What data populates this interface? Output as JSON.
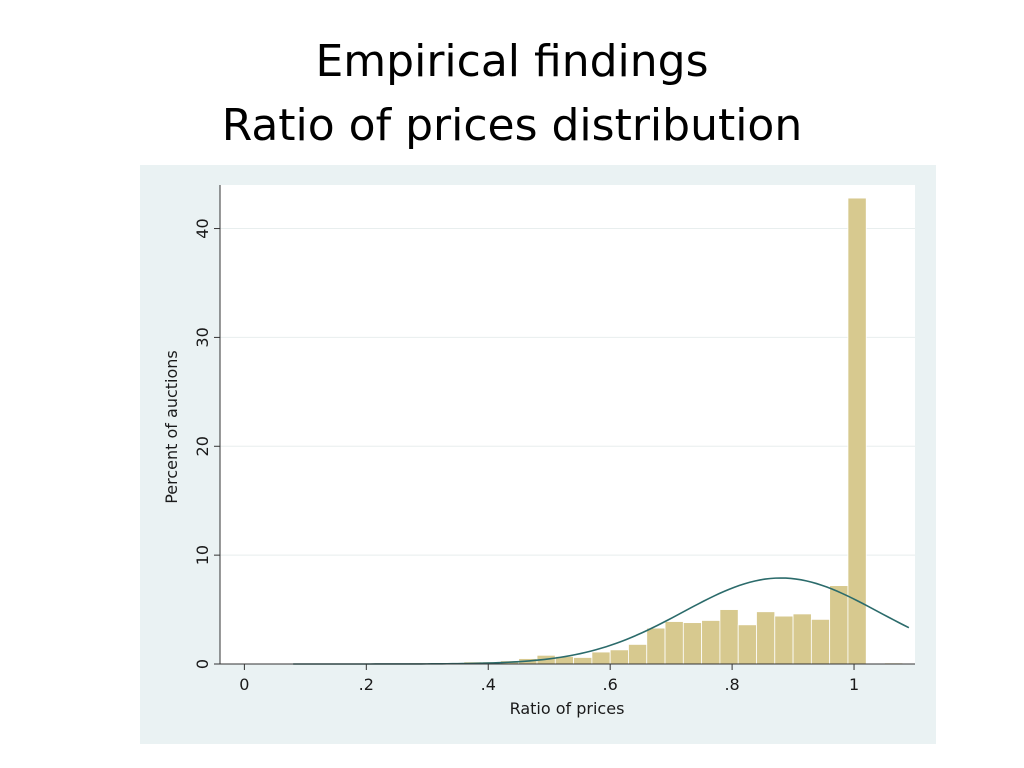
{
  "slide": {
    "title_line1": "Empirical findings",
    "title_line2": "Ratio of prices distribution"
  },
  "colors": {
    "frame_background": "#EAF2F3",
    "plot_background": "#FFFFFF",
    "bar_fill": "#D7C98F",
    "bar_stroke": "#FFFFFF",
    "curve": "#2B6B6B",
    "gridline": "#E8EEEE",
    "axis": "#333333"
  },
  "chart_data": {
    "type": "bar",
    "title": "",
    "xlabel": "Ratio of prices",
    "ylabel": "Percent of auctions",
    "xlim": [
      -0.04,
      1.1
    ],
    "ylim": [
      0,
      44
    ],
    "x_ticks": [
      {
        "value": 0,
        "label": "0"
      },
      {
        "value": 0.2,
        "label": ".2"
      },
      {
        "value": 0.4,
        "label": ".4"
      },
      {
        "value": 0.6,
        "label": ".6"
      },
      {
        "value": 0.8,
        "label": ".8"
      },
      {
        "value": 1,
        "label": "1"
      }
    ],
    "y_ticks": [
      {
        "value": 0,
        "label": "0"
      },
      {
        "value": 10,
        "label": "10"
      },
      {
        "value": 20,
        "label": "20"
      },
      {
        "value": 30,
        "label": "30"
      },
      {
        "value": 40,
        "label": "40"
      }
    ],
    "grid": true,
    "bins": [
      {
        "x0": 0.27,
        "x1": 0.3,
        "y": 0.1
      },
      {
        "x0": 0.3,
        "x1": 0.33,
        "y": 0.1
      },
      {
        "x0": 0.33,
        "x1": 0.36,
        "y": 0.0
      },
      {
        "x0": 0.36,
        "x1": 0.39,
        "y": 0.2
      },
      {
        "x0": 0.39,
        "x1": 0.42,
        "y": 0.2
      },
      {
        "x0": 0.42,
        "x1": 0.45,
        "y": 0.3
      },
      {
        "x0": 0.45,
        "x1": 0.48,
        "y": 0.5
      },
      {
        "x0": 0.48,
        "x1": 0.51,
        "y": 0.8
      },
      {
        "x0": 0.51,
        "x1": 0.54,
        "y": 0.7
      },
      {
        "x0": 0.54,
        "x1": 0.57,
        "y": 0.6
      },
      {
        "x0": 0.57,
        "x1": 0.6,
        "y": 1.1
      },
      {
        "x0": 0.6,
        "x1": 0.63,
        "y": 1.3
      },
      {
        "x0": 0.63,
        "x1": 0.66,
        "y": 1.8
      },
      {
        "x0": 0.66,
        "x1": 0.69,
        "y": 3.3
      },
      {
        "x0": 0.69,
        "x1": 0.72,
        "y": 3.9
      },
      {
        "x0": 0.72,
        "x1": 0.75,
        "y": 3.8
      },
      {
        "x0": 0.75,
        "x1": 0.78,
        "y": 4.0
      },
      {
        "x0": 0.78,
        "x1": 0.81,
        "y": 5.0
      },
      {
        "x0": 0.81,
        "x1": 0.84,
        "y": 3.6
      },
      {
        "x0": 0.84,
        "x1": 0.87,
        "y": 4.8
      },
      {
        "x0": 0.87,
        "x1": 0.9,
        "y": 4.4
      },
      {
        "x0": 0.9,
        "x1": 0.93,
        "y": 4.6
      },
      {
        "x0": 0.93,
        "x1": 0.96,
        "y": 4.1
      },
      {
        "x0": 0.96,
        "x1": 0.99,
        "y": 7.2
      },
      {
        "x0": 0.99,
        "x1": 1.02,
        "y": 42.8
      },
      {
        "x0": 1.05,
        "x1": 1.08,
        "y": 0.1
      }
    ],
    "normal_curve": {
      "type": "line",
      "mean": 0.88,
      "sd": 0.16,
      "peak": 7.9,
      "x_range": [
        0.08,
        1.09
      ]
    }
  }
}
